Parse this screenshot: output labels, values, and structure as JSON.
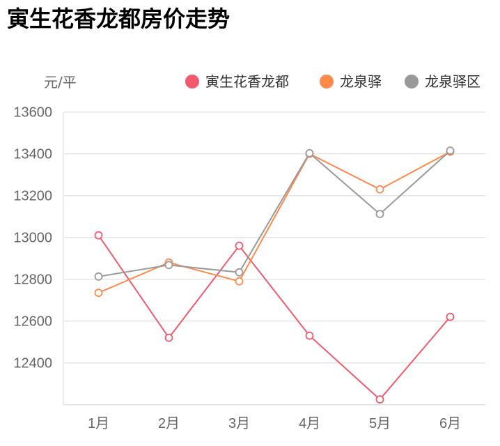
{
  "chart_data": {
    "type": "line",
    "title": "寅生花香龙都房价走势",
    "ylabel": "元/平",
    "xlabel": "",
    "categories": [
      "1月",
      "2月",
      "3月",
      "4月",
      "5月",
      "6月"
    ],
    "ylim": [
      12200,
      13600
    ],
    "yticks": [
      12400,
      12600,
      12800,
      13000,
      13200,
      13400,
      13600
    ],
    "grid": true,
    "legend_position": "top-right",
    "series": [
      {
        "name": "寅生花香龙都",
        "color": "#f25a6e",
        "values": [
          13010,
          12520,
          12960,
          12530,
          12225,
          12620
        ]
      },
      {
        "name": "龙泉驿",
        "color": "#ff8a4c",
        "values": [
          12735,
          12880,
          12790,
          13400,
          13230,
          13410
        ]
      },
      {
        "name": "龙泉驿区",
        "color": "#999999",
        "values": [
          12813,
          12868,
          12833,
          13403,
          13112,
          13415
        ]
      }
    ]
  }
}
